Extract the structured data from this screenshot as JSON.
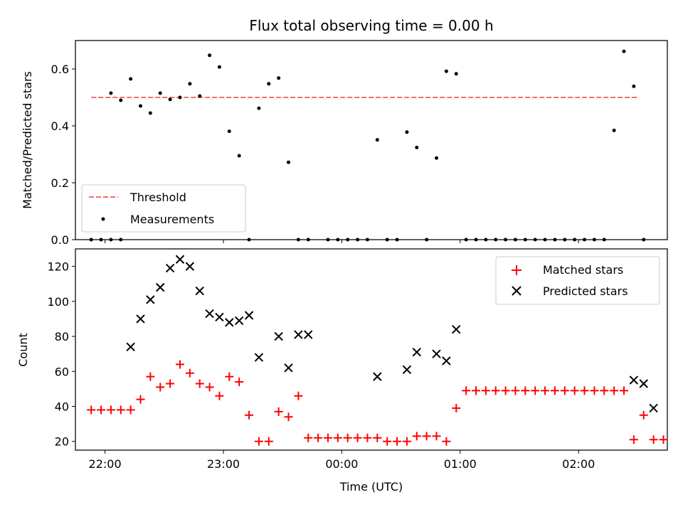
{
  "chart_data": [
    {
      "type": "scatter",
      "title": "Flux total observing time = 0.00 h",
      "ylabel": "Matched/Predicted stars",
      "xlim": [
        "21:45",
        "02:45"
      ],
      "ylim": [
        0,
        0.7
      ],
      "yticks": [
        0.0,
        0.2,
        0.4,
        0.6
      ],
      "ytick_labels": [
        "0.0",
        "0.2",
        "0.4",
        "0.6"
      ],
      "xticks": [
        "22:00",
        "23:00",
        "00:00",
        "01:00",
        "02:00"
      ],
      "legend_position": "lower-left",
      "threshold": {
        "name": "Threshold",
        "value": 0.5,
        "x_start": "21:53",
        "x_end": "02:30",
        "color": "#f07070",
        "style": "dashed"
      },
      "series": [
        {
          "name": "Measurements",
          "color": "#000000",
          "marker": "dot",
          "points": [
            [
              "21:53",
              0.0
            ],
            [
              "21:58",
              0.0
            ],
            [
              "22:03",
              0.0
            ],
            [
              "22:08",
              0.0
            ],
            [
              "22:03",
              0.515
            ],
            [
              "22:08",
              0.49
            ],
            [
              "22:13",
              0.565
            ],
            [
              "22:18",
              0.47
            ],
            [
              "22:23",
              0.445
            ],
            [
              "22:28",
              0.515
            ],
            [
              "22:33",
              0.493
            ],
            [
              "22:38",
              0.5
            ],
            [
              "22:43",
              0.548
            ],
            [
              "22:48",
              0.505
            ],
            [
              "22:53",
              0.648
            ],
            [
              "22:58",
              0.607
            ],
            [
              "23:03",
              0.381
            ],
            [
              "23:08",
              0.295
            ],
            [
              "23:13",
              0.0
            ],
            [
              "23:18",
              0.462
            ],
            [
              "23:23",
              0.548
            ],
            [
              "23:28",
              0.568
            ],
            [
              "23:33",
              0.272
            ],
            [
              "23:38",
              0.0
            ],
            [
              "23:43",
              0.0
            ],
            [
              "23:53",
              0.0
            ],
            [
              "23:58",
              0.0
            ],
            [
              "00:03",
              0.0
            ],
            [
              "00:08",
              0.0
            ],
            [
              "00:13",
              0.0
            ],
            [
              "00:18",
              0.351
            ],
            [
              "00:23",
              0.0
            ],
            [
              "00:28",
              0.0
            ],
            [
              "00:33",
              0.378
            ],
            [
              "00:38",
              0.324
            ],
            [
              "00:43",
              0.0
            ],
            [
              "00:48",
              0.287
            ],
            [
              "00:53",
              0.592
            ],
            [
              "00:58",
              0.583
            ],
            [
              "01:03",
              0.0
            ],
            [
              "01:08",
              0.0
            ],
            [
              "01:13",
              0.0
            ],
            [
              "01:18",
              0.0
            ],
            [
              "01:23",
              0.0
            ],
            [
              "01:28",
              0.0
            ],
            [
              "01:33",
              0.0
            ],
            [
              "01:38",
              0.0
            ],
            [
              "01:43",
              0.0
            ],
            [
              "01:48",
              0.0
            ],
            [
              "01:53",
              0.0
            ],
            [
              "01:58",
              0.0
            ],
            [
              "02:03",
              0.0
            ],
            [
              "02:08",
              0.0
            ],
            [
              "02:13",
              0.0
            ],
            [
              "02:18",
              0.384
            ],
            [
              "02:23",
              0.662
            ],
            [
              "02:28",
              0.539
            ],
            [
              "02:33",
              0.0
            ]
          ]
        }
      ]
    },
    {
      "type": "scatter",
      "xlabel": "Time (UTC)",
      "ylabel": "Count",
      "xlim": [
        "21:45",
        "02:45"
      ],
      "ylim": [
        15,
        130
      ],
      "yticks": [
        20,
        40,
        60,
        80,
        100,
        120
      ],
      "xticks": [
        "22:00",
        "23:00",
        "00:00",
        "01:00",
        "02:00"
      ],
      "legend_position": "top-right",
      "series": [
        {
          "name": "Matched stars",
          "color": "#ff0000",
          "marker": "plus",
          "points": [
            [
              "21:53",
              38
            ],
            [
              "21:58",
              38
            ],
            [
              "22:03",
              38
            ],
            [
              "22:08",
              38
            ],
            [
              "22:13",
              38
            ],
            [
              "22:18",
              44
            ],
            [
              "22:23",
              57
            ],
            [
              "22:28",
              51
            ],
            [
              "22:33",
              53
            ],
            [
              "22:38",
              64
            ],
            [
              "22:43",
              59
            ],
            [
              "22:48",
              53
            ],
            [
              "22:53",
              51
            ],
            [
              "22:58",
              46
            ],
            [
              "23:03",
              57
            ],
            [
              "23:08",
              54
            ],
            [
              "23:13",
              35
            ],
            [
              "23:18",
              20
            ],
            [
              "23:23",
              20
            ],
            [
              "23:28",
              37
            ],
            [
              "23:33",
              34
            ],
            [
              "23:38",
              46
            ],
            [
              "23:43",
              22
            ],
            [
              "23:48",
              22
            ],
            [
              "23:53",
              22
            ],
            [
              "23:58",
              22
            ],
            [
              "00:03",
              22
            ],
            [
              "00:08",
              22
            ],
            [
              "00:13",
              22
            ],
            [
              "00:18",
              22
            ],
            [
              "00:23",
              20
            ],
            [
              "00:28",
              20
            ],
            [
              "00:33",
              20
            ],
            [
              "00:38",
              23
            ],
            [
              "00:43",
              23
            ],
            [
              "00:48",
              23
            ],
            [
              "00:53",
              20
            ],
            [
              "00:58",
              39
            ],
            [
              "01:03",
              49
            ],
            [
              "01:08",
              49
            ],
            [
              "01:13",
              49
            ],
            [
              "01:18",
              49
            ],
            [
              "01:23",
              49
            ],
            [
              "01:28",
              49
            ],
            [
              "01:33",
              49
            ],
            [
              "01:38",
              49
            ],
            [
              "01:43",
              49
            ],
            [
              "01:48",
              49
            ],
            [
              "01:53",
              49
            ],
            [
              "01:58",
              49
            ],
            [
              "02:03",
              49
            ],
            [
              "02:08",
              49
            ],
            [
              "02:13",
              49
            ],
            [
              "02:18",
              49
            ],
            [
              "02:23",
              49
            ],
            [
              "02:28",
              21
            ],
            [
              "02:33",
              35
            ],
            [
              "02:38",
              21
            ],
            [
              "02:43",
              21
            ]
          ]
        },
        {
          "name": "Predicted stars",
          "color": "#000000",
          "marker": "x",
          "points": [
            [
              "22:13",
              74
            ],
            [
              "22:18",
              90
            ],
            [
              "22:23",
              101
            ],
            [
              "22:28",
              108
            ],
            [
              "22:33",
              119
            ],
            [
              "22:38",
              124
            ],
            [
              "22:43",
              120
            ],
            [
              "22:48",
              106
            ],
            [
              "22:53",
              93
            ],
            [
              "22:58",
              91
            ],
            [
              "23:03",
              88
            ],
            [
              "23:08",
              89
            ],
            [
              "23:13",
              92
            ],
            [
              "23:18",
              68
            ],
            [
              "23:28",
              80
            ],
            [
              "23:33",
              62
            ],
            [
              "23:38",
              81
            ],
            [
              "23:43",
              81
            ],
            [
              "00:18",
              57
            ],
            [
              "00:33",
              61
            ],
            [
              "00:38",
              71
            ],
            [
              "00:48",
              70
            ],
            [
              "00:53",
              66
            ],
            [
              "00:58",
              84
            ],
            [
              "02:28",
              55
            ],
            [
              "02:33",
              53
            ],
            [
              "02:38",
              39
            ]
          ]
        }
      ]
    }
  ]
}
